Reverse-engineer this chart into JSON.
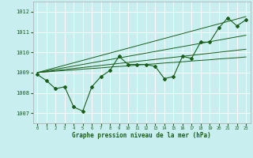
{
  "title": "Graphe pression niveau de la mer (hPa)",
  "bg_color": "#c8eef0",
  "line_color": "#1a5e1a",
  "grid_color": "#ffffff",
  "xlim": [
    -0.5,
    23.5
  ],
  "ylim": [
    1006.5,
    1012.5
  ],
  "yticks": [
    1007,
    1008,
    1009,
    1010,
    1011,
    1012
  ],
  "xticks": [
    0,
    1,
    2,
    3,
    4,
    5,
    6,
    7,
    8,
    9,
    10,
    11,
    12,
    13,
    14,
    15,
    16,
    17,
    18,
    19,
    20,
    21,
    22,
    23
  ],
  "main_line": [
    1008.9,
    1008.6,
    1008.2,
    1008.3,
    1007.3,
    1007.1,
    1008.3,
    1008.8,
    1009.1,
    1009.8,
    1009.4,
    1009.4,
    1009.4,
    1009.3,
    1008.7,
    1008.8,
    1009.8,
    1009.7,
    1010.5,
    1010.5,
    1011.2,
    1011.7,
    1011.3,
    1011.6
  ],
  "trend_lines": [
    [
      1009.0,
      1009.03,
      1009.07,
      1009.1,
      1009.13,
      1009.17,
      1009.2,
      1009.23,
      1009.27,
      1009.3,
      1009.33,
      1009.37,
      1009.4,
      1009.43,
      1009.47,
      1009.5,
      1009.53,
      1009.57,
      1009.6,
      1009.63,
      1009.67,
      1009.7,
      1009.73,
      1009.77
    ],
    [
      1009.0,
      1009.05,
      1009.1,
      1009.15,
      1009.2,
      1009.25,
      1009.3,
      1009.35,
      1009.4,
      1009.45,
      1009.5,
      1009.55,
      1009.6,
      1009.65,
      1009.7,
      1009.75,
      1009.8,
      1009.85,
      1009.9,
      1009.95,
      1010.0,
      1010.05,
      1010.1,
      1010.15
    ],
    [
      1009.0,
      1009.08,
      1009.16,
      1009.24,
      1009.32,
      1009.4,
      1009.48,
      1009.56,
      1009.64,
      1009.72,
      1009.8,
      1009.88,
      1009.96,
      1010.04,
      1010.12,
      1010.2,
      1010.28,
      1010.36,
      1010.44,
      1010.52,
      1010.6,
      1010.68,
      1010.76,
      1010.84
    ],
    [
      1009.0,
      1009.12,
      1009.24,
      1009.36,
      1009.48,
      1009.6,
      1009.72,
      1009.84,
      1009.96,
      1010.08,
      1010.2,
      1010.32,
      1010.44,
      1010.56,
      1010.68,
      1010.8,
      1010.92,
      1011.04,
      1011.16,
      1011.28,
      1011.4,
      1011.52,
      1011.64,
      1011.76
    ]
  ]
}
